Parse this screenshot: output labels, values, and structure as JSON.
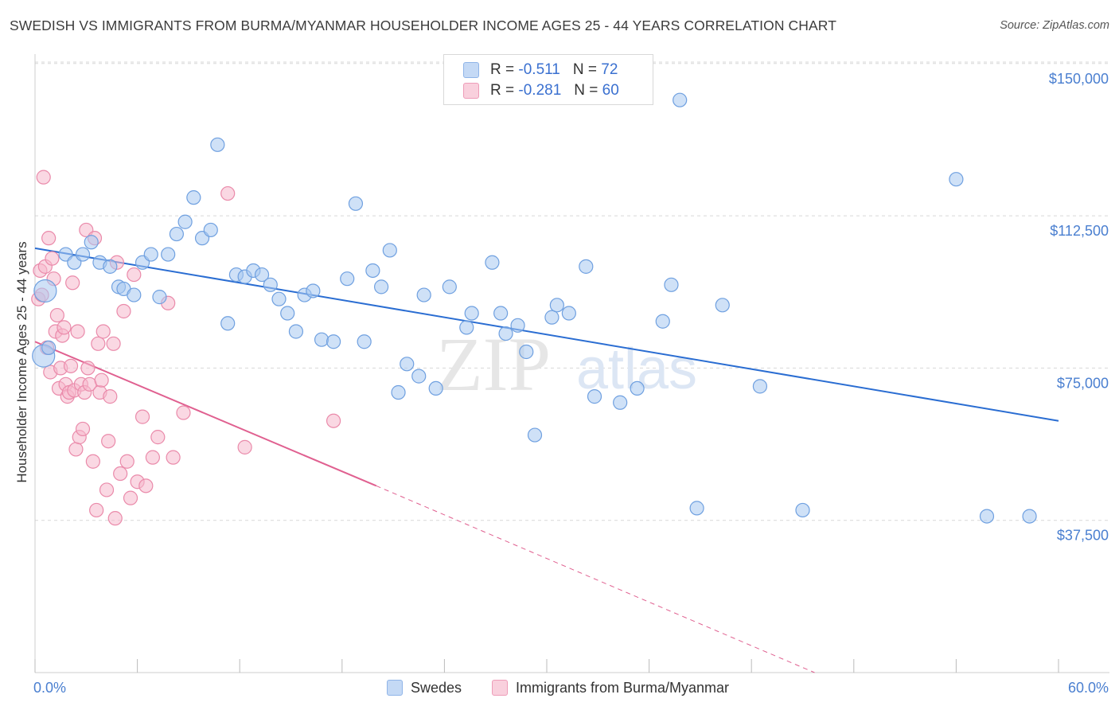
{
  "title": "SWEDISH VS IMMIGRANTS FROM BURMA/MYANMAR HOUSEHOLDER INCOME AGES 25 - 44 YEARS CORRELATION CHART",
  "source": "Source: ZipAtlas.com",
  "watermark": {
    "zip": "ZIP",
    "atlas": "atlas"
  },
  "legend": {
    "rows": [
      {
        "r_label": "R =",
        "r_value": "-0.511",
        "n_label": "N =",
        "n_value": "72",
        "color": "#a8c8f0"
      },
      {
        "r_label": "R =",
        "r_value": "-0.281",
        "n_label": "N =",
        "n_value": "60",
        "color": "#f5b8cc"
      }
    ]
  },
  "colors": {
    "blue_fill": "#a8c8f0",
    "blue_stroke": "#6fa0e0",
    "blue_line": "#2a6dd2",
    "pink_fill": "#f5b8cc",
    "pink_stroke": "#ea8aaa",
    "pink_line": "#e06090",
    "tick_text": "#4a7fd0",
    "grid": "#d8d8d8"
  },
  "chart_data": {
    "type": "scatter",
    "title": "SWEDISH VS IMMIGRANTS FROM BURMA/MYANMAR HOUSEHOLDER INCOME AGES 25 - 44 YEARS CORRELATION CHART",
    "xlabel": "",
    "ylabel": "Householder Income Ages 25 - 44 years",
    "xlim": [
      0,
      60
    ],
    "ylim": [
      0,
      155000
    ],
    "x_tick_labels": [
      "0.0%",
      "60.0%"
    ],
    "y_ticks": [
      37500,
      75000,
      112500,
      150000
    ],
    "y_tick_labels": [
      "$37,500",
      "$75,000",
      "$112,500",
      "$150,000"
    ],
    "grid": true,
    "legend_position": "bottom-center",
    "series": [
      {
        "name": "Swedes",
        "color": "#a8c8f0",
        "points": [
          [
            0.5,
            78000
          ],
          [
            0.6,
            94000
          ],
          [
            1.8,
            103000
          ],
          [
            2.3,
            101000
          ],
          [
            2.8,
            103000
          ],
          [
            3.3,
            106000
          ],
          [
            3.8,
            101000
          ],
          [
            4.4,
            100000
          ],
          [
            4.9,
            95000
          ],
          [
            5.2,
            94500
          ],
          [
            5.8,
            93000
          ],
          [
            6.3,
            101000
          ],
          [
            6.8,
            103000
          ],
          [
            7.3,
            92500
          ],
          [
            7.8,
            103000
          ],
          [
            8.3,
            108000
          ],
          [
            8.8,
            111000
          ],
          [
            9.3,
            117000
          ],
          [
            9.8,
            107000
          ],
          [
            10.3,
            109000
          ],
          [
            10.7,
            130000
          ],
          [
            11.3,
            86000
          ],
          [
            11.8,
            98000
          ],
          [
            12.3,
            97500
          ],
          [
            12.8,
            99000
          ],
          [
            13.3,
            98000
          ],
          [
            13.8,
            95500
          ],
          [
            14.3,
            92000
          ],
          [
            14.8,
            88500
          ],
          [
            15.3,
            84000
          ],
          [
            15.8,
            93000
          ],
          [
            16.3,
            94000
          ],
          [
            16.8,
            82000
          ],
          [
            17.5,
            81500
          ],
          [
            18.3,
            97000
          ],
          [
            18.8,
            115500
          ],
          [
            19.3,
            81500
          ],
          [
            19.8,
            99000
          ],
          [
            20.3,
            95000
          ],
          [
            20.8,
            104000
          ],
          [
            21.3,
            69000
          ],
          [
            21.8,
            76000
          ],
          [
            22.5,
            73000
          ],
          [
            22.8,
            93000
          ],
          [
            23.5,
            70000
          ],
          [
            24.3,
            95000
          ],
          [
            25.3,
            85000
          ],
          [
            25.6,
            88500
          ],
          [
            26.8,
            101000
          ],
          [
            27.3,
            88500
          ],
          [
            27.6,
            83500
          ],
          [
            28.3,
            85500
          ],
          [
            28.8,
            79000
          ],
          [
            29.3,
            58500
          ],
          [
            30.3,
            87500
          ],
          [
            30.6,
            90500
          ],
          [
            31.3,
            88500
          ],
          [
            32.3,
            100000
          ],
          [
            32.8,
            68000
          ],
          [
            34.3,
            66500
          ],
          [
            35.3,
            70000
          ],
          [
            36.8,
            86500
          ],
          [
            37.3,
            95500
          ],
          [
            37.8,
            141000
          ],
          [
            38.8,
            40500
          ],
          [
            40.3,
            90500
          ],
          [
            42.5,
            70500
          ],
          [
            45.0,
            40000
          ],
          [
            54.0,
            121500
          ],
          [
            55.8,
            38500
          ],
          [
            58.3,
            38500
          ],
          [
            0.8,
            80000
          ]
        ],
        "trend": {
          "x0": 0,
          "y0": 104500,
          "x1": 60,
          "y1": 62000
        }
      },
      {
        "name": "Immigrants from Burma/Myanmar",
        "color": "#f5b8cc",
        "points": [
          [
            0.2,
            92000
          ],
          [
            0.3,
            99000
          ],
          [
            0.4,
            93000
          ],
          [
            0.5,
            122000
          ],
          [
            0.6,
            100000
          ],
          [
            0.7,
            80000
          ],
          [
            0.8,
            107000
          ],
          [
            0.9,
            74000
          ],
          [
            1.0,
            102000
          ],
          [
            1.1,
            97000
          ],
          [
            1.2,
            84000
          ],
          [
            1.3,
            88000
          ],
          [
            1.4,
            70000
          ],
          [
            1.5,
            75000
          ],
          [
            1.6,
            83000
          ],
          [
            1.7,
            85000
          ],
          [
            1.8,
            71000
          ],
          [
            1.9,
            68000
          ],
          [
            2.0,
            69000
          ],
          [
            2.1,
            75500
          ],
          [
            2.2,
            96000
          ],
          [
            2.3,
            69500
          ],
          [
            2.4,
            55000
          ],
          [
            2.5,
            84000
          ],
          [
            2.6,
            58000
          ],
          [
            2.7,
            71000
          ],
          [
            2.8,
            60000
          ],
          [
            2.9,
            69000
          ],
          [
            3.0,
            109000
          ],
          [
            3.1,
            75000
          ],
          [
            3.2,
            71000
          ],
          [
            3.4,
            52000
          ],
          [
            3.5,
            107000
          ],
          [
            3.6,
            40000
          ],
          [
            3.7,
            81000
          ],
          [
            3.8,
            69000
          ],
          [
            3.9,
            72000
          ],
          [
            4.0,
            84000
          ],
          [
            4.2,
            45000
          ],
          [
            4.3,
            57000
          ],
          [
            4.4,
            68000
          ],
          [
            4.6,
            81000
          ],
          [
            4.7,
            38000
          ],
          [
            4.8,
            101000
          ],
          [
            5.0,
            49000
          ],
          [
            5.2,
            89000
          ],
          [
            5.4,
            52000
          ],
          [
            5.6,
            43000
          ],
          [
            5.8,
            98000
          ],
          [
            6.0,
            47000
          ],
          [
            6.3,
            63000
          ],
          [
            6.5,
            46000
          ],
          [
            6.9,
            53000
          ],
          [
            7.2,
            58000
          ],
          [
            7.8,
            91000
          ],
          [
            8.1,
            53000
          ],
          [
            8.7,
            64000
          ],
          [
            11.3,
            118000
          ],
          [
            12.3,
            55500
          ],
          [
            17.5,
            62000
          ]
        ],
        "trend": {
          "x0": 0,
          "y0": 81500,
          "x1": 20,
          "y1": 46000,
          "dash_to_x": 45.7,
          "dash_to_y": 0
        }
      }
    ]
  },
  "bottom_legend": {
    "items": [
      {
        "label": "Swedes",
        "color": "#a8c8f0"
      },
      {
        "label": "Immigrants from Burma/Myanmar",
        "color": "#f5b8cc"
      }
    ]
  }
}
